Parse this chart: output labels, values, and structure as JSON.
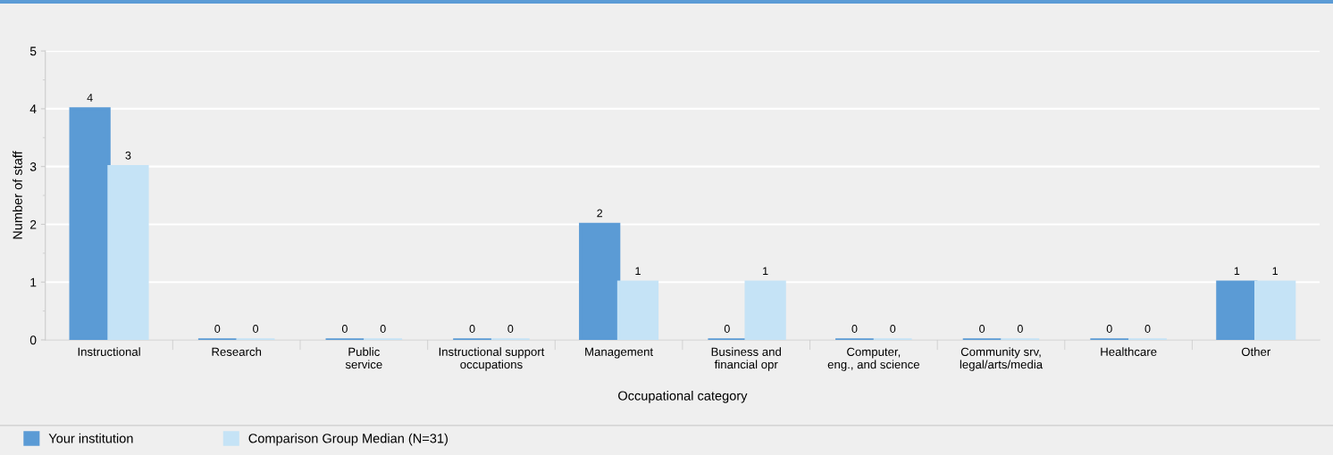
{
  "chart_data": {
    "type": "bar",
    "xlabel": "Occupational category",
    "ylabel": "Number of staff",
    "categories": [
      "Instructional",
      "Research",
      "Public\nservice",
      "Instructional support\noccupations",
      "Management",
      "Business and\nfinancial opr",
      "Computer,\neng., and science",
      "Community srv,\nlegal/arts/media",
      "Healthcare",
      "Other"
    ],
    "series": [
      {
        "name": "Your institution",
        "color": "#5b9bd5",
        "values": [
          4,
          0,
          0,
          0,
          2,
          0,
          0,
          0,
          0,
          1
        ]
      },
      {
        "name": "Comparison Group Median (N=31)",
        "color": "#c5e3f6",
        "values": [
          3,
          0,
          0,
          0,
          1,
          1,
          0,
          0,
          0,
          1
        ]
      }
    ],
    "ylim": [
      0,
      5
    ],
    "yticks": [
      0,
      1,
      2,
      3,
      4,
      5
    ],
    "grid": "y",
    "legend": "bottom left",
    "data_labels": true
  }
}
